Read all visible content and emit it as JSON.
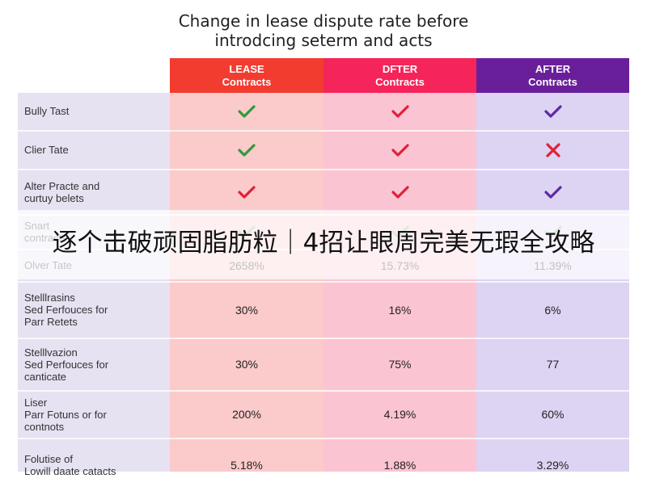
{
  "title_lines": [
    "Change in lease dispute rate before",
    "introdcing seterm and acts"
  ],
  "columns": [
    {
      "line1": "LEASE",
      "line2": "Contracts",
      "header_color": "#f23c2f",
      "body_color": "#fbcaca"
    },
    {
      "line1": "DFTER",
      "line2": "Contracts",
      "header_color": "#f5245a",
      "body_color": "#fbc4d3"
    },
    {
      "line1": "AFTER",
      "line2": "Contracts",
      "header_color": "#6a1f9a",
      "body_color": "#ddd3f2"
    }
  ],
  "rows": [
    {
      "label": [
        "Bully Tast"
      ],
      "cells": [
        {
          "mark": "check",
          "color": "#2e9b3a"
        },
        {
          "mark": "check",
          "color": "#e0203a"
        },
        {
          "mark": "check",
          "color": "#5a2aa8"
        }
      ]
    },
    {
      "label": [
        "Clier Tate"
      ],
      "cells": [
        {
          "mark": "check",
          "color": "#2e9b3a"
        },
        {
          "mark": "check",
          "color": "#e0203a"
        },
        {
          "mark": "cross",
          "color": "#e0203a"
        }
      ]
    },
    {
      "label": [
        "Alter Practe and",
        "curtuy belets"
      ],
      "cells": [
        {
          "mark": "check",
          "color": "#e0203a"
        },
        {
          "mark": "check",
          "color": "#e0203a"
        },
        {
          "mark": "check",
          "color": "#5a2aa8"
        }
      ]
    },
    {
      "label": [
        "Snart",
        "contracts"
      ],
      "cells": [
        {
          "mark": "check",
          "color": "#7ac27e"
        },
        {
          "mark": "check",
          "color": "#7ac27e"
        },
        {
          "mark": "check",
          "color": "#7ac27e"
        }
      ]
    },
    {
      "label": [
        "Olver Tate"
      ],
      "cells": [
        {
          "text": "2658%"
        },
        {
          "text": "15.73%"
        },
        {
          "text": "11.39%"
        }
      ]
    },
    {
      "label": [
        "Stelllrasins",
        "Sed Ferfouces for",
        "Parr Retets"
      ],
      "cells": [
        {
          "text": "30%"
        },
        {
          "text": "16%"
        },
        {
          "text": "6%"
        }
      ]
    },
    {
      "label": [
        "Stelllvazion",
        "Sed Perfouces for",
        "canticate"
      ],
      "cells": [
        {
          "text": "30%"
        },
        {
          "text": "75%"
        },
        {
          "text": "77"
        }
      ]
    },
    {
      "label": [
        "Liser",
        "Parr Fotuns or for",
        "contnots"
      ],
      "cells": [
        {
          "text": "200%"
        },
        {
          "text": "4.19%"
        },
        {
          "text": "60%"
        }
      ]
    },
    {
      "label": [
        "Folutise of",
        "Lowill daate catacts"
      ],
      "cells": [
        {
          "text": "5.18%"
        },
        {
          "text": "1.88%"
        },
        {
          "text": "3.29%"
        }
      ]
    }
  ],
  "banner": {
    "text": "逐个击破顽固脂肪粒｜4招让眼周完美无瑕全攻略"
  },
  "chart_data": {
    "type": "table",
    "title": "Change in lease dispute rate before introdcing seterm and acts",
    "columns": [
      "LEASE Contracts",
      "DFTER Contracts",
      "AFTER Contracts"
    ],
    "rows": [
      {
        "label": "Bully Tast",
        "values": [
          "check",
          "check",
          "check"
        ]
      },
      {
        "label": "Clier Tate",
        "values": [
          "check",
          "check",
          "cross"
        ]
      },
      {
        "label": "Alter Practe and curtuy belets",
        "values": [
          "check",
          "check",
          "check"
        ]
      },
      {
        "label": "Snart contracts",
        "values": [
          "check",
          "check",
          "check"
        ]
      },
      {
        "label": "Olver Tate",
        "values": [
          "2658%",
          "15.73%",
          "11.39%"
        ]
      },
      {
        "label": "Stelllrasins Sed Ferfouces for Parr Retets",
        "values": [
          "30%",
          "16%",
          "6%"
        ]
      },
      {
        "label": "Stelllvazion Sed Perfouces for canticate",
        "values": [
          "30%",
          "75%",
          "77"
        ]
      },
      {
        "label": "Liser Parr Fotuns or for contnots",
        "values": [
          "200%",
          "4.19%",
          "60%"
        ]
      },
      {
        "label": "Folutise of Lowill daate catacts",
        "values": [
          "5.18%",
          "1.88%",
          "3.29%"
        ]
      }
    ]
  }
}
